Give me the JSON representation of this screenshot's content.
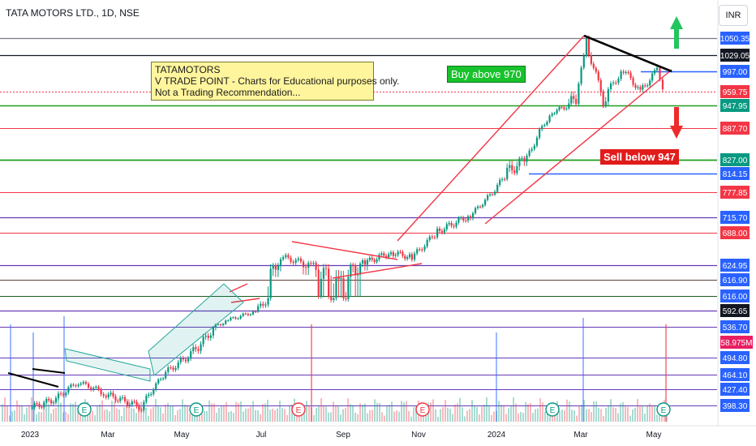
{
  "chart_data": {
    "type": "candlestick",
    "title": "TATA MOTORS LTD., 1D, NSE",
    "currency": "INR",
    "x_ticks": [
      "2023",
      "Mar",
      "May",
      "Jul",
      "Sep",
      "Nov",
      "2024",
      "Mar",
      "May"
    ],
    "y_range": [
      385,
      1085
    ],
    "horizontal_levels": [
      {
        "label": "1050.35",
        "color": "#2962ff",
        "text_color": "#ffffff",
        "value": 1050.35
      },
      {
        "label": "1029.05",
        "color": "#131722",
        "text_color": "#ffffff",
        "value": 1029.05
      },
      {
        "label": "997.00",
        "color": "#2962ff",
        "text_color": "#ffffff",
        "value": 997.0
      },
      {
        "label": "959.75",
        "color": "#f23645",
        "text_color": "#ffffff",
        "value": 959.75
      },
      {
        "label": "947.95",
        "color": "#089981",
        "text_color": "#ffffff",
        "value": 947.95
      },
      {
        "label": "887.70",
        "color": "#f23645",
        "text_color": "#ffffff",
        "value": 887.7
      },
      {
        "label": "827.00",
        "color": "#089981",
        "text_color": "#ffffff",
        "value": 827.0
      },
      {
        "label": "814.15",
        "color": "#2962ff",
        "text_color": "#ffffff",
        "value": 814.15
      },
      {
        "label": "777.85",
        "color": "#f23645",
        "text_color": "#ffffff",
        "value": 777.85
      },
      {
        "label": "715.70",
        "color": "#2962ff",
        "text_color": "#ffffff",
        "value": 715.7
      },
      {
        "label": "688.00",
        "color": "#f23645",
        "text_color": "#ffffff",
        "value": 688.0
      },
      {
        "label": "624.95",
        "color": "#2962ff",
        "text_color": "#ffffff",
        "value": 624.95
      },
      {
        "label": "616.90",
        "color": "#2962ff",
        "text_color": "#ffffff",
        "value": 616.9
      },
      {
        "label": "616.00",
        "color": "#2962ff",
        "text_color": "#ffffff",
        "value": 616.0
      },
      {
        "label": "592.65",
        "color": "#131722",
        "text_color": "#ffffff",
        "value": 592.65
      },
      {
        "label": "536.70",
        "color": "#2962ff",
        "text_color": "#ffffff",
        "value": 536.7
      },
      {
        "label": "494.80",
        "color": "#2962ff",
        "text_color": "#ffffff",
        "value": 494.8
      },
      {
        "label": "464.10",
        "color": "#2962ff",
        "text_color": "#ffffff",
        "value": 464.1
      },
      {
        "label": "427.40",
        "color": "#2962ff",
        "text_color": "#ffffff",
        "value": 427.4
      },
      {
        "label": "398.30",
        "color": "#2962ff",
        "text_color": "#ffffff",
        "value": 398.3
      }
    ],
    "volume_label": "58.975M",
    "price_series_approx": [
      {
        "x": "2023-01-02",
        "y": 395
      },
      {
        "x": "2023-01-20",
        "y": 410
      },
      {
        "x": "2023-02-06",
        "y": 445
      },
      {
        "x": "2023-02-27",
        "y": 418
      },
      {
        "x": "2023-03-28",
        "y": 395
      },
      {
        "x": "2023-04-17",
        "y": 468
      },
      {
        "x": "2023-05-15",
        "y": 513
      },
      {
        "x": "2023-06-05",
        "y": 560
      },
      {
        "x": "2023-06-26",
        "y": 590
      },
      {
        "x": "2023-07-17",
        "y": 640
      },
      {
        "x": "2023-08-07",
        "y": 625
      },
      {
        "x": "2023-08-28",
        "y": 612
      },
      {
        "x": "2023-09-18",
        "y": 630
      },
      {
        "x": "2023-10-09",
        "y": 650
      },
      {
        "x": "2023-10-26",
        "y": 640
      },
      {
        "x": "2023-11-15",
        "y": 690
      },
      {
        "x": "2023-12-11",
        "y": 720
      },
      {
        "x": "2024-01-08",
        "y": 815
      },
      {
        "x": "2024-01-22",
        "y": 830
      },
      {
        "x": "2024-02-09",
        "y": 930
      },
      {
        "x": "2024-02-26",
        "y": 955
      },
      {
        "x": "2024-03-05",
        "y": 1045
      },
      {
        "x": "2024-03-19",
        "y": 950
      },
      {
        "x": "2024-04-05",
        "y": 1000
      },
      {
        "x": "2024-04-19",
        "y": 960
      },
      {
        "x": "2024-05-03",
        "y": 1000
      },
      {
        "x": "2024-05-10",
        "y": 955
      }
    ],
    "annotations": [
      {
        "type": "note",
        "lines": [
          "TATAMOTORS",
          "V TRADE POINT - Charts for Educational purposes only.",
          "Not a Trading Recommendation..."
        ]
      },
      {
        "type": "label",
        "text": "Buy above 970",
        "color": "#18c22c"
      },
      {
        "type": "label",
        "text": "Sell below 947",
        "color": "#e21b1b"
      }
    ]
  },
  "title": "TATA MOTORS LTD., 1D, NSE",
  "currency": "INR",
  "note": {
    "line1": "TATAMOTORS",
    "line2": "V TRADE POINT - Charts for Educational purposes only.",
    "line3": "Not a Trading Recommendation..."
  },
  "buy_label": "Buy above 970",
  "sell_label": "Sell below 947",
  "volume_label": "58.975M",
  "colors": {
    "up": "#089981",
    "down": "#f23645",
    "blue": "#2962ff",
    "green_line": "#1e9e1e",
    "red_line": "#f23645"
  }
}
